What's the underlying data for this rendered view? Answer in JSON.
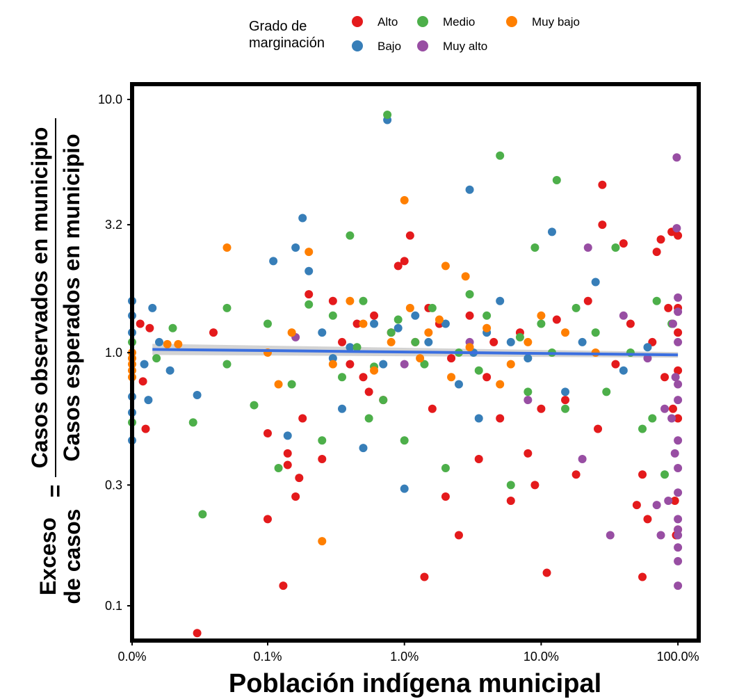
{
  "chart_data": {
    "type": "scatter",
    "title": "",
    "xlabel": "Población indígena municipal",
    "ylabel": {
      "prefix_line1": "Exceso",
      "prefix_line2": "de casos",
      "equals": "=",
      "numerator": "Casos observados en municipio",
      "denominator": "Casos esperados en municipio"
    },
    "x_scale": "log",
    "y_scale": "log",
    "x_ticks": [
      {
        "value": 0.0,
        "label": "0.0%"
      },
      {
        "value": 0.1,
        "label": "0.1%"
      },
      {
        "value": 1.0,
        "label": "1.0%"
      },
      {
        "value": 10.0,
        "label": "10.0%"
      },
      {
        "value": 100.0,
        "label": "100.0%"
      }
    ],
    "y_ticks": [
      {
        "value": 0.1,
        "label": "0.1"
      },
      {
        "value": 0.3,
        "label": "0.3"
      },
      {
        "value": 1.0,
        "label": "1.0"
      },
      {
        "value": 3.2,
        "label": "3.2"
      },
      {
        "value": 10.0,
        "label": "10.0"
      }
    ],
    "ylim": [
      0.085,
      11.5
    ],
    "grid": false,
    "legend": {
      "title": "Grado de marginación",
      "placement": "top",
      "entries": [
        {
          "name": "Alto",
          "color": "#e41a1c"
        },
        {
          "name": "Bajo",
          "color": "#377eb8"
        },
        {
          "name": "Medio",
          "color": "#4daf4a"
        },
        {
          "name": "Muy alto",
          "color": "#984ea3"
        },
        {
          "name": "Muy bajo",
          "color": "#ff7f00"
        }
      ]
    },
    "trend_line": {
      "color": "#3b6fe0",
      "ci_color": "#c8c8c8",
      "x": [
        0.015,
        100.0
      ],
      "y": [
        1.03,
        0.98
      ]
    },
    "series": [
      {
        "name": "Alto",
        "color": "#e41a1c",
        "points": [
          [
            0.006,
            1.3
          ],
          [
            0.008,
            0.77
          ],
          [
            0.01,
            0.5
          ],
          [
            0.013,
            1.25
          ],
          [
            0.048,
            0.078
          ],
          [
            0.06,
            1.2
          ],
          [
            0.1,
            0.48
          ],
          [
            0.1,
            0.22
          ],
          [
            0.13,
            0.12
          ],
          [
            0.14,
            0.4
          ],
          [
            0.14,
            0.36
          ],
          [
            0.16,
            0.27
          ],
          [
            0.17,
            0.32
          ],
          [
            0.18,
            0.55
          ],
          [
            0.2,
            1.7
          ],
          [
            0.25,
            0.38
          ],
          [
            0.3,
            1.6
          ],
          [
            0.35,
            1.1
          ],
          [
            0.4,
            0.9
          ],
          [
            0.45,
            1.3
          ],
          [
            0.5,
            0.8
          ],
          [
            0.55,
            0.7
          ],
          [
            0.6,
            1.4
          ],
          [
            0.7,
            0.65
          ],
          [
            0.8,
            1.2
          ],
          [
            0.9,
            2.2
          ],
          [
            1.0,
            2.3
          ],
          [
            1.1,
            2.9
          ],
          [
            1.2,
            1.1
          ],
          [
            1.4,
            0.13
          ],
          [
            1.5,
            1.5
          ],
          [
            1.6,
            0.6
          ],
          [
            1.8,
            1.3
          ],
          [
            2.0,
            0.27
          ],
          [
            2.2,
            0.95
          ],
          [
            2.5,
            0.19
          ],
          [
            3.0,
            1.4
          ],
          [
            3.5,
            0.38
          ],
          [
            4.0,
            0.8
          ],
          [
            4.5,
            1.1
          ],
          [
            5.0,
            0.55
          ],
          [
            6.0,
            0.26
          ],
          [
            7.0,
            1.2
          ],
          [
            8.0,
            0.4
          ],
          [
            9.0,
            0.3
          ],
          [
            10.0,
            0.6
          ],
          [
            11.0,
            0.135
          ],
          [
            13.0,
            1.35
          ],
          [
            15.0,
            0.65
          ],
          [
            18.0,
            0.33
          ],
          [
            22.0,
            1.6
          ],
          [
            26.0,
            0.5
          ],
          [
            28.0,
            4.6
          ],
          [
            28.0,
            3.2
          ],
          [
            35.0,
            0.9
          ],
          [
            40.0,
            2.7
          ],
          [
            45.0,
            1.3
          ],
          [
            50.0,
            0.25
          ],
          [
            55.0,
            0.33
          ],
          [
            55.0,
            0.13
          ],
          [
            60.0,
            0.22
          ],
          [
            65.0,
            1.1
          ],
          [
            70.0,
            2.5
          ],
          [
            75.0,
            2.8
          ],
          [
            80.0,
            0.8
          ],
          [
            85.0,
            1.5
          ],
          [
            90.0,
            3.0
          ],
          [
            92.0,
            0.6
          ],
          [
            95.0,
            0.26
          ],
          [
            97.0,
            0.19
          ],
          [
            100.0,
            0.55
          ],
          [
            100.0,
            0.85
          ],
          [
            100.0,
            1.2
          ],
          [
            100.0,
            1.5
          ],
          [
            100.0,
            2.9
          ],
          [
            100.0,
            0.2
          ]
        ]
      },
      {
        "name": "Bajo",
        "color": "#377eb8",
        "points": [
          [
            0.0,
            1.6
          ],
          [
            0.0,
            1.4
          ],
          [
            0.0,
            1.2
          ],
          [
            0.0,
            0.67
          ],
          [
            0.0,
            0.58
          ],
          [
            0.0,
            0.45
          ],
          [
            0.009,
            0.9
          ],
          [
            0.012,
            0.65
          ],
          [
            0.015,
            1.5
          ],
          [
            0.02,
            1.1
          ],
          [
            0.028,
            0.85
          ],
          [
            0.048,
            0.68
          ],
          [
            0.11,
            2.3
          ],
          [
            0.14,
            0.47
          ],
          [
            0.16,
            2.6
          ],
          [
            0.18,
            3.4
          ],
          [
            0.2,
            2.1
          ],
          [
            0.25,
            1.2
          ],
          [
            0.3,
            0.95
          ],
          [
            0.35,
            0.6
          ],
          [
            0.4,
            1.05
          ],
          [
            0.5,
            0.42
          ],
          [
            0.6,
            1.3
          ],
          [
            0.7,
            0.9
          ],
          [
            0.75,
            8.3
          ],
          [
            0.9,
            1.25
          ],
          [
            1.0,
            0.29
          ],
          [
            1.2,
            1.4
          ],
          [
            1.5,
            1.1
          ],
          [
            2.0,
            1.3
          ],
          [
            2.5,
            0.75
          ],
          [
            3.0,
            4.4
          ],
          [
            3.2,
            1.0
          ],
          [
            3.5,
            0.55
          ],
          [
            4.0,
            1.2
          ],
          [
            5.0,
            1.6
          ],
          [
            6.0,
            1.1
          ],
          [
            8.0,
            0.95
          ],
          [
            12.0,
            3.0
          ],
          [
            15.0,
            0.7
          ],
          [
            20.0,
            1.1
          ],
          [
            25.0,
            1.9
          ],
          [
            40.0,
            0.85
          ],
          [
            60.0,
            1.05
          ]
        ]
      },
      {
        "name": "Medio",
        "color": "#4daf4a",
        "points": [
          [
            0.0,
            1.1
          ],
          [
            0.0,
            0.53
          ],
          [
            0.018,
            0.95
          ],
          [
            0.03,
            1.25
          ],
          [
            0.045,
            0.53
          ],
          [
            0.052,
            0.23
          ],
          [
            0.07,
            0.9
          ],
          [
            0.07,
            1.5
          ],
          [
            0.09,
            0.62
          ],
          [
            0.1,
            1.3
          ],
          [
            0.12,
            0.35
          ],
          [
            0.15,
            0.75
          ],
          [
            0.2,
            1.55
          ],
          [
            0.25,
            0.45
          ],
          [
            0.3,
            1.4
          ],
          [
            0.35,
            0.8
          ],
          [
            0.4,
            2.9
          ],
          [
            0.45,
            1.05
          ],
          [
            0.5,
            1.6
          ],
          [
            0.55,
            0.55
          ],
          [
            0.6,
            0.88
          ],
          [
            0.7,
            0.65
          ],
          [
            0.75,
            8.7
          ],
          [
            0.8,
            1.2
          ],
          [
            0.9,
            1.35
          ],
          [
            1.0,
            0.45
          ],
          [
            1.2,
            1.1
          ],
          [
            1.4,
            0.9
          ],
          [
            1.6,
            1.5
          ],
          [
            2.0,
            0.35
          ],
          [
            2.5,
            1.0
          ],
          [
            3.0,
            1.7
          ],
          [
            3.5,
            0.85
          ],
          [
            4.0,
            1.4
          ],
          [
            5.0,
            6.0
          ],
          [
            6.0,
            0.3
          ],
          [
            7.0,
            1.15
          ],
          [
            8.0,
            0.7
          ],
          [
            9.0,
            2.6
          ],
          [
            10.0,
            1.3
          ],
          [
            12.0,
            1.0
          ],
          [
            13.0,
            4.8
          ],
          [
            15.0,
            0.6
          ],
          [
            18.0,
            1.5
          ],
          [
            25.0,
            1.2
          ],
          [
            30.0,
            0.7
          ],
          [
            35.0,
            2.6
          ],
          [
            45.0,
            1.0
          ],
          [
            55.0,
            0.5
          ],
          [
            65.0,
            0.55
          ],
          [
            70.0,
            1.6
          ],
          [
            80.0,
            0.33
          ],
          [
            90.0,
            1.3
          ]
        ]
      },
      {
        "name": "Muy alto",
        "color": "#984ea3",
        "points": [
          [
            0.16,
            1.15
          ],
          [
            1.0,
            0.9
          ],
          [
            3.0,
            1.1
          ],
          [
            8.0,
            0.65
          ],
          [
            20.0,
            0.38
          ],
          [
            22.0,
            2.6
          ],
          [
            32.0,
            0.19
          ],
          [
            40.0,
            1.4
          ],
          [
            60.0,
            0.95
          ],
          [
            70.0,
            0.25
          ],
          [
            75.0,
            0.19
          ],
          [
            80.0,
            0.6
          ],
          [
            85.0,
            0.26
          ],
          [
            90.0,
            0.55
          ],
          [
            92.0,
            1.3
          ],
          [
            95.0,
            0.4
          ],
          [
            96.0,
            0.8
          ],
          [
            98.0,
            5.9
          ],
          [
            98.0,
            3.1
          ],
          [
            100.0,
            0.19
          ],
          [
            100.0,
            0.17
          ],
          [
            100.0,
            0.15
          ],
          [
            100.0,
            0.12
          ],
          [
            100.0,
            0.2
          ],
          [
            100.0,
            0.35
          ],
          [
            100.0,
            0.75
          ],
          [
            100.0,
            1.65
          ],
          [
            100.0,
            1.1
          ],
          [
            100.0,
            0.45
          ],
          [
            100.0,
            0.28
          ],
          [
            100.0,
            0.22
          ],
          [
            100.0,
            1.45
          ],
          [
            100.0,
            0.65
          ]
        ]
      },
      {
        "name": "Muy bajo",
        "color": "#ff7f00",
        "points": [
          [
            0.0,
            1.0
          ],
          [
            0.0,
            0.9
          ],
          [
            0.0,
            0.85
          ],
          [
            0.0,
            0.8
          ],
          [
            0.0,
            0.95
          ],
          [
            0.026,
            1.08
          ],
          [
            0.034,
            1.08
          ],
          [
            0.07,
            2.6
          ],
          [
            0.1,
            1.0
          ],
          [
            0.12,
            0.75
          ],
          [
            0.15,
            1.2
          ],
          [
            0.2,
            2.5
          ],
          [
            0.25,
            0.18
          ],
          [
            0.3,
            0.9
          ],
          [
            0.4,
            1.6
          ],
          [
            0.5,
            1.3
          ],
          [
            0.6,
            0.85
          ],
          [
            0.8,
            1.1
          ],
          [
            1.0,
            4.0
          ],
          [
            1.1,
            1.5
          ],
          [
            1.3,
            0.95
          ],
          [
            1.5,
            1.2
          ],
          [
            1.8,
            1.35
          ],
          [
            2.0,
            2.2
          ],
          [
            2.2,
            0.8
          ],
          [
            2.8,
            2.0
          ],
          [
            3.0,
            1.05
          ],
          [
            4.0,
            1.25
          ],
          [
            5.0,
            0.75
          ],
          [
            6.0,
            0.9
          ],
          [
            8.0,
            1.1
          ],
          [
            10.0,
            1.4
          ],
          [
            15.0,
            1.2
          ],
          [
            25.0,
            1.0
          ]
        ]
      }
    ]
  }
}
